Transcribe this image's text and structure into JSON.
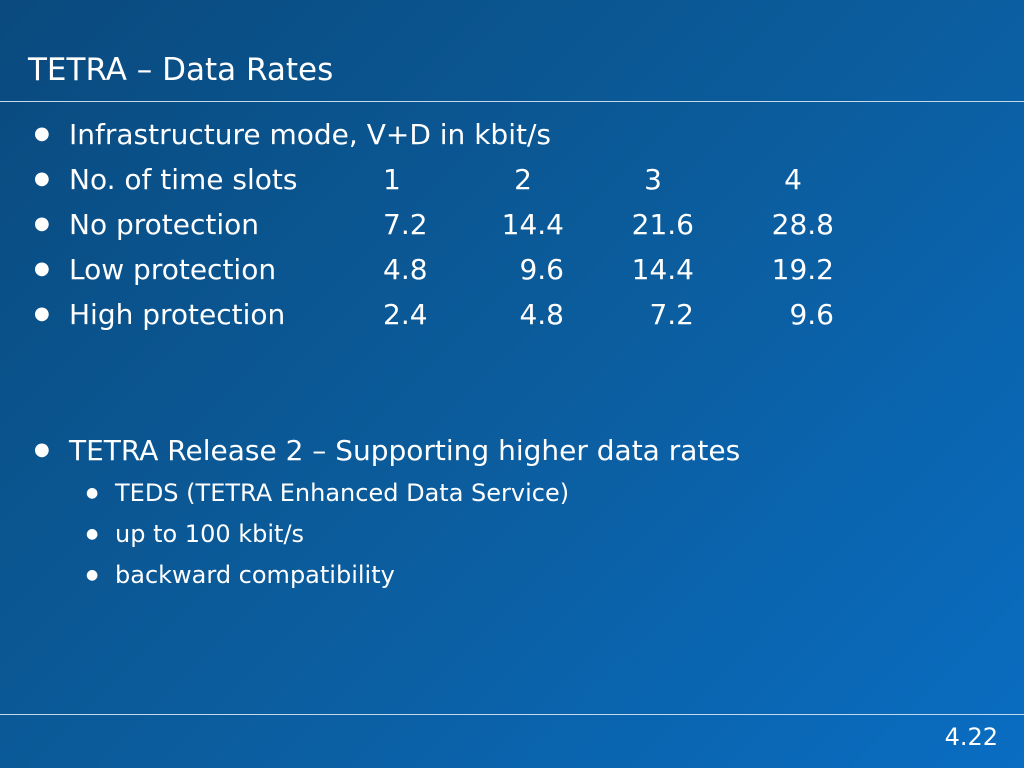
{
  "slide": {
    "title": "TETRA – Data Rates",
    "page_number": "4.22",
    "colors": {
      "background_start": "#0a4a7e",
      "background_end": "#0a6dc2",
      "text": "#ffffff",
      "rule": "#c5d9ea"
    }
  },
  "bullets": [
    {
      "text": "Infrastructure mode, V+D in kbit/s"
    },
    {
      "label": "No. of time slots",
      "values": [
        "1",
        "2",
        "3",
        "4"
      ]
    },
    {
      "label": "No protection",
      "values": [
        "7.2",
        "14.4",
        "21.6",
        "28.8"
      ]
    },
    {
      "label": "Low protection",
      "values": [
        "4.8",
        "9.6",
        "14.4",
        "19.2"
      ]
    },
    {
      "label": "High protection",
      "values": [
        "2.4",
        "4.8",
        "7.2",
        "9.6"
      ]
    },
    {
      "text": "TETRA Release 2 – Supporting higher data rates",
      "sub": [
        "TEDS (TETRA Enhanced Data Service)",
        "up to 100 kbit/s",
        "backward compatibility"
      ]
    }
  ]
}
